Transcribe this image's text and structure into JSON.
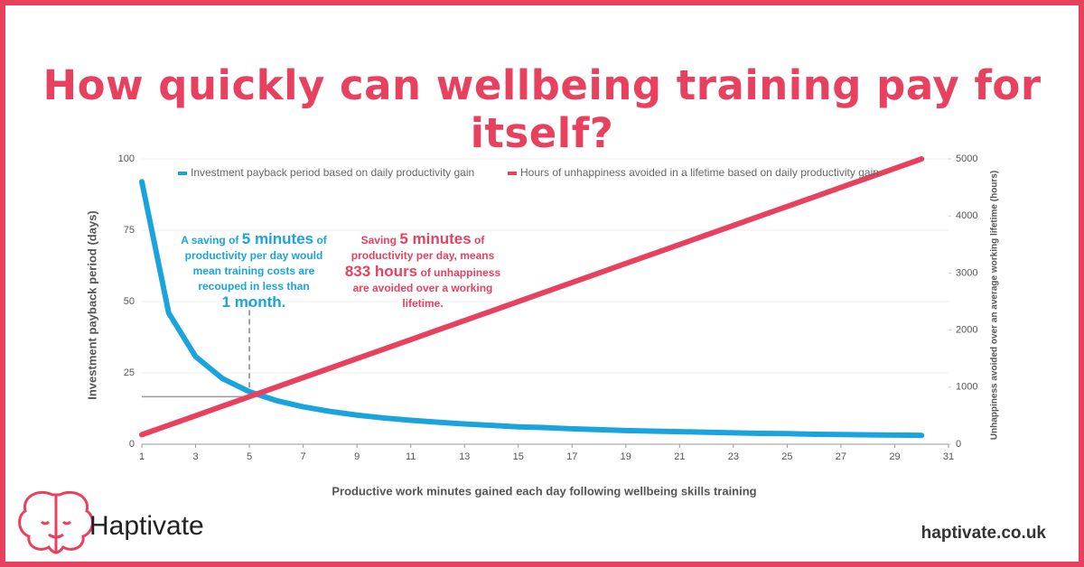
{
  "title": "How quickly can wellbeing training pay for itself?",
  "chart_data": {
    "type": "line",
    "x": [
      1,
      2,
      3,
      4,
      5,
      6,
      7,
      8,
      9,
      10,
      11,
      12,
      13,
      14,
      15,
      16,
      17,
      18,
      19,
      20,
      21,
      22,
      23,
      24,
      25,
      26,
      27,
      28,
      29,
      30
    ],
    "series": [
      {
        "name": "Investment payback period based on daily productivity gain",
        "color": "#1ba3de",
        "values": [
          92,
          46,
          30.7,
          23,
          18.4,
          15.3,
          13.1,
          11.5,
          10.2,
          9.2,
          8.4,
          7.7,
          7.1,
          6.6,
          6.1,
          5.8,
          5.4,
          5.1,
          4.8,
          4.6,
          4.4,
          4.2,
          4.0,
          3.8,
          3.7,
          3.5,
          3.4,
          3.3,
          3.2,
          3.1
        ]
      },
      {
        "name": "Hours of unhappiness avoided in a lifetime based on daily productivity gain",
        "color": "#e8415f",
        "axis": "y2",
        "values": [
          167,
          333,
          500,
          667,
          833,
          1000,
          1167,
          1333,
          1500,
          1667,
          1833,
          2000,
          2167,
          2333,
          2500,
          2667,
          2833,
          3000,
          3167,
          3333,
          3500,
          3667,
          3833,
          4000,
          4167,
          4333,
          4500,
          4667,
          4833,
          5000
        ]
      }
    ],
    "xlim": [
      1,
      31
    ],
    "xticks": [
      1,
      3,
      5,
      7,
      9,
      11,
      13,
      15,
      17,
      19,
      21,
      23,
      25,
      27,
      29,
      31
    ],
    "ylim": [
      0,
      100
    ],
    "yticks": [
      0,
      25,
      50,
      75,
      100
    ],
    "y2lim": [
      0,
      5000
    ],
    "y2ticks": [
      0,
      1000,
      2000,
      3000,
      4000,
      5000
    ],
    "xlabel": "Productive work minutes gained each day following wellbeing skills training",
    "ylabel": "Investment payback period (days)",
    "y2label": "Unhappiness avoided over an average working lifetime (hours)",
    "grid": true,
    "legend": "top",
    "annotations": [
      {
        "parts": [
          "A saving of",
          "5 minutes",
          "of productivity per day would mean training costs are recouped in less than",
          "1 month."
        ]
      },
      {
        "parts": [
          "Saving",
          "5 minutes",
          "of productivity per day, means",
          "833 hours",
          "of unhappiness are avoided over a working lifetime."
        ]
      }
    ]
  },
  "brand": "Haptivate",
  "website": "haptivate.co.uk"
}
